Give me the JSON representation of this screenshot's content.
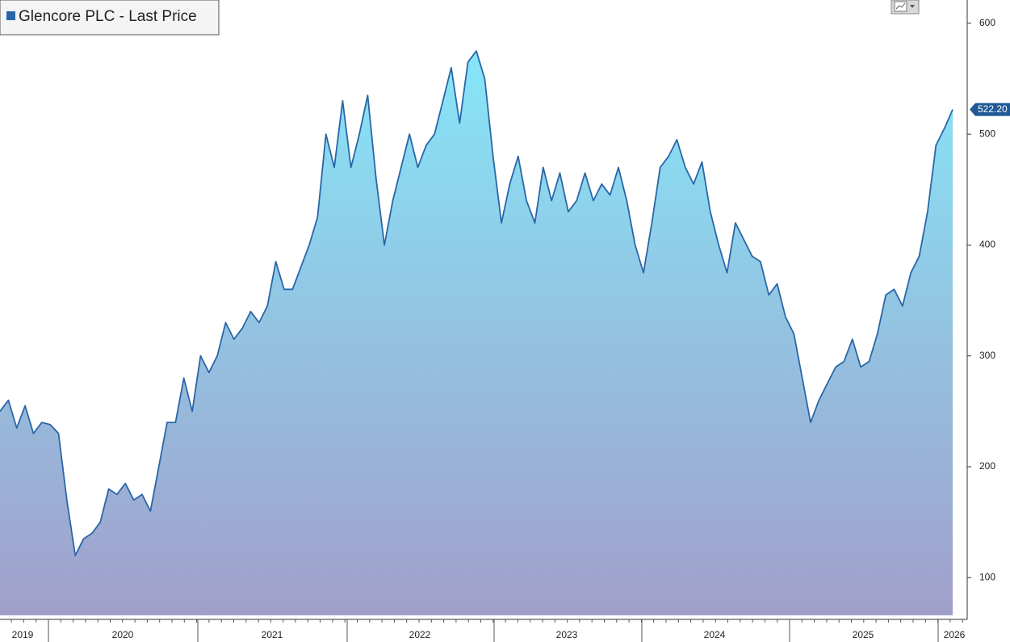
{
  "chart_data": {
    "type": "area",
    "series": [
      {
        "name": "Glencore PLC - Last Price",
        "color": "#2a66a8",
        "values": [
          250,
          260,
          235,
          255,
          230,
          240,
          238,
          230,
          170,
          120,
          135,
          140,
          150,
          180,
          175,
          185,
          170,
          175,
          160,
          200,
          240,
          240,
          280,
          250,
          300,
          285,
          300,
          330,
          315,
          325,
          340,
          330,
          345,
          385,
          360,
          360,
          380,
          400,
          425,
          500,
          470,
          530,
          470,
          500,
          535,
          460,
          400,
          440,
          470,
          500,
          470,
          490,
          500,
          530,
          560,
          510,
          565,
          575,
          550,
          480,
          420,
          455,
          480,
          440,
          420,
          470,
          440,
          465,
          430,
          440,
          465,
          440,
          455,
          445,
          470,
          440,
          400,
          375,
          420,
          470,
          480,
          495,
          470,
          455,
          475,
          430,
          400,
          375,
          420,
          405,
          390,
          385,
          355,
          365,
          335,
          320,
          280,
          240,
          260,
          275,
          290,
          295,
          315,
          290,
          295,
          320,
          355,
          360,
          345,
          375,
          390,
          430,
          490,
          505,
          522.2
        ]
      }
    ],
    "last_label": {
      "value": 522.2,
      "label": "522.20"
    },
    "x_labels": [
      "2019",
      "2020",
      "2021",
      "2022",
      "2023",
      "2024",
      "2025",
      "2026"
    ],
    "ylim": [
      66,
      621
    ],
    "yticks": [
      100,
      200,
      300,
      400,
      500,
      600
    ]
  }
}
